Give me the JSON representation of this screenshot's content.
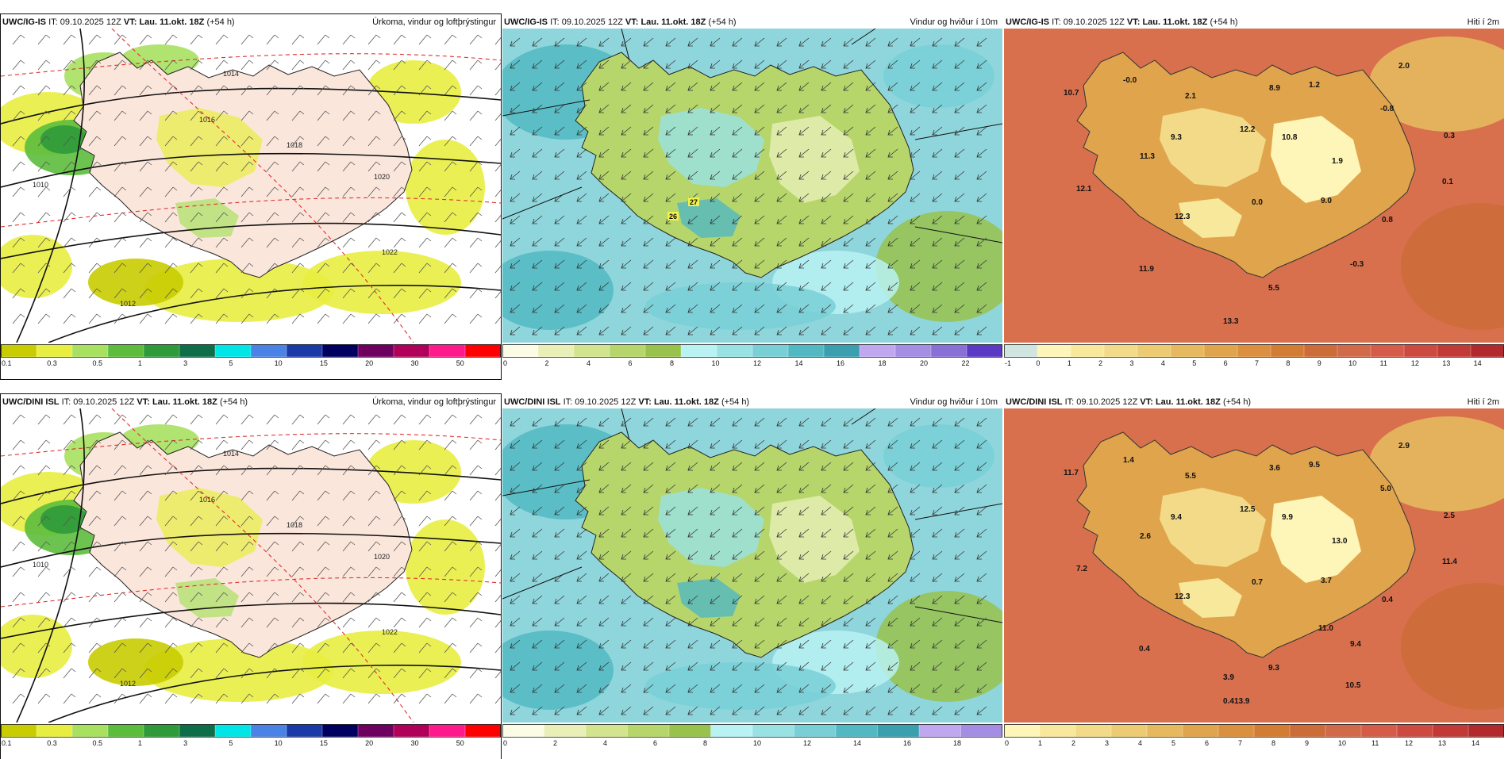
{
  "rows": [
    {
      "model": "UWC/IG-IS",
      "panels": [
        {
          "type": "precip",
          "header": {
            "model": "UWC/IG-IS",
            "it_prefix": "IT:",
            "it": "09.10.2025 12Z",
            "vt_prefix": "VT:",
            "vt": "Lau. 11.okt. 18Z",
            "lead": "(+54 h)",
            "title": "Úrkoma, vindur og loftþrýstingur"
          },
          "colorbar": {
            "colors": [
              "#c8cc00",
              "#e8ee40",
              "#a8e060",
              "#5cbd3c",
              "#2e9a3a",
              "#0f6e4a",
              "#00e6e6",
              "#4a82e6",
              "#1a3aa8",
              "#000060",
              "#6e0060",
              "#b0005a",
              "#ff1a8c",
              "#ff0000"
            ],
            "labels": [
              "0.1",
              "0.3",
              "0.5",
              "1",
              "3",
              "5",
              "10",
              "15",
              "20",
              "30",
              "50"
            ]
          },
          "isobar_labels": [
            "1016",
            "1018",
            "1020",
            "1022",
            "1010",
            "1012",
            "1014"
          ]
        },
        {
          "type": "wind",
          "header": {
            "model": "UWC/IG-IS",
            "it_prefix": "IT:",
            "it": "09.10.2025 12Z",
            "vt_prefix": "VT:",
            "vt": "Lau. 11.okt. 18Z",
            "lead": "(+54 h)",
            "title": "Vindur og hviður í 10m"
          },
          "colorbar": {
            "colors": [
              "#fbfbe6",
              "#e8f0b8",
              "#d2e48e",
              "#b6d66c",
              "#98c24c",
              "#b8f2f2",
              "#98e2e4",
              "#78d0d6",
              "#52b8c2",
              "#3aa0b0",
              "#c0a8f0",
              "#a48ee4",
              "#8870d6",
              "#5a3ac4"
            ],
            "labels": [
              "0",
              "2",
              "4",
              "6",
              "8",
              "10",
              "12",
              "14",
              "16",
              "18",
              "20",
              "22"
            ]
          },
          "gust_labels": [
            "27",
            "26"
          ]
        },
        {
          "type": "temp",
          "header": {
            "model": "UWC/IG-IS",
            "it_prefix": "IT:",
            "it": "09.10.2025 12Z",
            "vt_prefix": "VT:",
            "vt": "Lau. 11.okt. 18Z",
            "lead": "(+54 h)",
            "title": "Hiti í 2m"
          },
          "colorbar": {
            "colors": [
              "#d0e4e0",
              "#fdf6b8",
              "#f8e89c",
              "#f2da88",
              "#eccb72",
              "#e6b95e",
              "#e0a44c",
              "#da903e",
              "#d27c34",
              "#cc6c38",
              "#d06a48",
              "#d45c48",
              "#cc4a40",
              "#c23a38",
              "#b02a2e"
            ],
            "labels": [
              "-1",
              "0",
              "1",
              "2",
              "3",
              "4",
              "5",
              "6",
              "7",
              "8",
              "9",
              "10",
              "11",
              "12",
              "13",
              "14"
            ]
          },
          "values": [
            "-0.0",
            "10.7",
            "2.1",
            "8.9",
            "1.2",
            "2.0",
            "-0.8",
            "9.3",
            "12.2",
            "10.8",
            "0.3",
            "11.3",
            "1.9",
            "12.1",
            "0.1",
            "0.0",
            "9.0",
            "12.3",
            "0.8",
            "-0.3",
            "11.9",
            "5.5",
            "13.3"
          ]
        }
      ]
    },
    {
      "model": "UWC/DINI ISL",
      "panels": [
        {
          "type": "precip",
          "header": {
            "model": "UWC/DINI ISL",
            "it_prefix": "IT:",
            "it": "09.10.2025 12Z",
            "vt_prefix": "VT:",
            "vt": "Lau. 11.okt. 18Z",
            "lead": "(+54 h)",
            "title": "Úrkoma, vindur og loftþrýstingur"
          },
          "colorbar": {
            "colors": [
              "#c8cc00",
              "#e8ee40",
              "#a8e060",
              "#5cbd3c",
              "#2e9a3a",
              "#0f6e4a",
              "#00e6e6",
              "#4a82e6",
              "#1a3aa8",
              "#000060",
              "#6e0060",
              "#b0005a",
              "#ff1a8c",
              "#ff0000"
            ],
            "labels": [
              "0.1",
              "0.3",
              "0.5",
              "1",
              "3",
              "5",
              "10",
              "15",
              "20",
              "30",
              "50"
            ]
          },
          "isobar_labels": [
            "1016",
            "1018",
            "1020",
            "1022",
            "1010",
            "1012",
            "1014"
          ]
        },
        {
          "type": "wind",
          "header": {
            "model": "UWC/DINI ISL",
            "it_prefix": "IT:",
            "it": "09.10.2025 12Z",
            "vt_prefix": "VT:",
            "vt": "Lau. 11.okt. 18Z",
            "lead": "(+54 h)",
            "title": "Vindur og hviður í 10m"
          },
          "colorbar": {
            "colors": [
              "#fbfbe6",
              "#e8f0b8",
              "#d2e48e",
              "#b6d66c",
              "#98c24c",
              "#b8f2f2",
              "#98e2e4",
              "#78d0d6",
              "#52b8c2",
              "#3aa0b0",
              "#c0a8f0",
              "#a48ee4"
            ],
            "labels": [
              "0",
              "2",
              "4",
              "6",
              "8",
              "10",
              "12",
              "14",
              "16",
              "18"
            ]
          },
          "gust_labels": []
        },
        {
          "type": "temp",
          "header": {
            "model": "UWC/DINI ISL",
            "it_prefix": "IT:",
            "it": "09.10.2025 12Z",
            "vt_prefix": "VT:",
            "vt": "Lau. 11.okt. 18Z",
            "lead": "(+54 h)",
            "title": "Hiti í 2m"
          },
          "colorbar": {
            "colors": [
              "#fdf6b8",
              "#f8e89c",
              "#f2da88",
              "#eccb72",
              "#e6b95e",
              "#e0a44c",
              "#da903e",
              "#d27c34",
              "#cc6c38",
              "#d06a48",
              "#d45c48",
              "#cc4a40",
              "#c23a38",
              "#b02a2e"
            ],
            "labels": [
              "0",
              "1",
              "2",
              "3",
              "4",
              "5",
              "6",
              "7",
              "8",
              "9",
              "10",
              "11",
              "12",
              "13",
              "14"
            ]
          },
          "values": [
            "1.4",
            "11.7",
            "5.5",
            "3.6",
            "9.5",
            "2.9",
            "5.0",
            "9.4",
            "12.5",
            "9.9",
            "2.5",
            "2.6",
            "13.0",
            "7.2",
            "11.4",
            "0.7",
            "3.7",
            "12.3",
            "0.4",
            "9.4",
            "0.4",
            "9.3",
            "0.4",
            "11.0",
            "3.9",
            "10.5",
            "13.9"
          ]
        }
      ]
    }
  ]
}
